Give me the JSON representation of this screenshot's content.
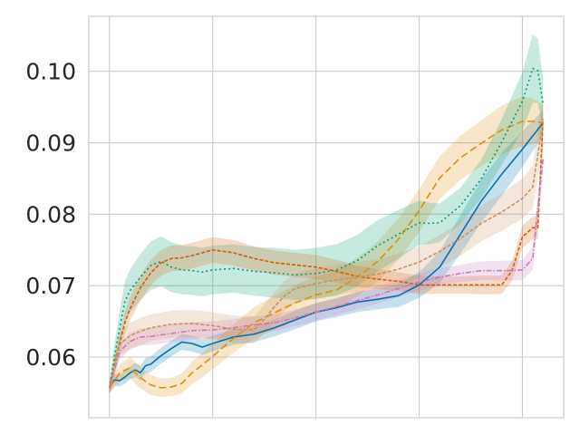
{
  "chart_data": {
    "type": "line",
    "title": "",
    "xlabel": "",
    "ylabel": "",
    "xlim": [
      -0.2,
      4.4
    ],
    "ylim": [
      0.0515,
      0.1077
    ],
    "x_ticks": [
      0,
      1,
      2,
      3,
      4
    ],
    "x_tick_labels": [
      "",
      "",
      "",
      "",
      ""
    ],
    "y_ticks": [
      0.06,
      0.07,
      0.08,
      0.09,
      0.1
    ],
    "y_tick_labels": [
      "0.06",
      "0.07",
      "0.08",
      "0.09",
      "0.10"
    ],
    "grid": true,
    "legend": "none",
    "series": [
      {
        "color": "#0173b2",
        "dash": "solid",
        "x": [
          0,
          0.05,
          0.1,
          0.15,
          0.2,
          0.25,
          0.3,
          0.35,
          0.4,
          0.5,
          0.6,
          0.7,
          0.8,
          0.9,
          1.0,
          1.2,
          1.4,
          1.6,
          1.8,
          2.0,
          2.2,
          2.4,
          2.6,
          2.8,
          3.0,
          3.2,
          3.4,
          3.6,
          3.8,
          4.0,
          4.2
        ],
        "y": [
          0.0557,
          0.0568,
          0.0567,
          0.0572,
          0.0578,
          0.0582,
          0.0578,
          0.0588,
          0.059,
          0.0602,
          0.0612,
          0.0621,
          0.0619,
          0.0614,
          0.0619,
          0.0628,
          0.0632,
          0.0641,
          0.0652,
          0.0663,
          0.0669,
          0.0677,
          0.0681,
          0.0686,
          0.0701,
          0.0726,
          0.0772,
          0.0818,
          0.0856,
          0.0891,
          0.0928
        ],
        "band": [
          0.0007,
          0.0008,
          0.0008,
          0.0009,
          0.0009,
          0.001,
          0.001,
          0.0011,
          0.0011,
          0.0011,
          0.0011,
          0.0011,
          0.0011,
          0.0011,
          0.0011,
          0.0011,
          0.0011,
          0.0012,
          0.0013,
          0.0013,
          0.0013,
          0.0014,
          0.0014,
          0.0016,
          0.0018,
          0.0022,
          0.0027,
          0.003,
          0.003,
          0.0025,
          0.0018
        ]
      },
      {
        "color": "#de8f05",
        "dash": "8,4",
        "x": [
          0,
          0.1,
          0.2,
          0.3,
          0.4,
          0.5,
          0.6,
          0.7,
          0.8,
          0.9,
          1.0,
          1.2,
          1.4,
          1.6,
          1.8,
          2.0,
          2.2,
          2.4,
          2.6,
          2.8,
          3.0,
          3.2,
          3.4,
          3.6,
          3.8,
          4.0,
          4.1,
          4.2
        ],
        "y": [
          0.0557,
          0.0578,
          0.0585,
          0.0571,
          0.0561,
          0.0557,
          0.0558,
          0.0563,
          0.0578,
          0.0589,
          0.0601,
          0.0626,
          0.0648,
          0.0662,
          0.0676,
          0.0687,
          0.0694,
          0.0712,
          0.0734,
          0.0765,
          0.0805,
          0.0851,
          0.0879,
          0.0899,
          0.0918,
          0.093,
          0.093,
          0.0928
        ],
        "band": [
          0.0008,
          0.0012,
          0.0015,
          0.0015,
          0.0014,
          0.0013,
          0.0013,
          0.0014,
          0.0016,
          0.0017,
          0.0018,
          0.002,
          0.0022,
          0.0024,
          0.0025,
          0.0026,
          0.0026,
          0.0027,
          0.0028,
          0.0029,
          0.003,
          0.003,
          0.0031,
          0.0032,
          0.0034,
          0.0035,
          0.0032,
          0.0025
        ]
      },
      {
        "color": "#029e73",
        "dash": "2,3",
        "x": [
          0,
          0.05,
          0.1,
          0.15,
          0.2,
          0.3,
          0.4,
          0.5,
          0.6,
          0.7,
          0.8,
          0.9,
          1.0,
          1.2,
          1.4,
          1.6,
          1.8,
          2.0,
          2.2,
          2.4,
          2.6,
          2.8,
          3.0,
          3.1,
          3.2,
          3.4,
          3.6,
          3.8,
          4.0,
          4.1,
          4.15,
          4.2
        ],
        "y": [
          0.0557,
          0.0602,
          0.0642,
          0.0678,
          0.0693,
          0.0712,
          0.0728,
          0.0734,
          0.0726,
          0.0722,
          0.0721,
          0.0719,
          0.0722,
          0.0724,
          0.072,
          0.0718,
          0.0715,
          0.0717,
          0.0722,
          0.0735,
          0.0756,
          0.0772,
          0.0788,
          0.0787,
          0.0788,
          0.0812,
          0.0849,
          0.0901,
          0.0958,
          0.1004,
          0.1001,
          0.0954
        ],
        "band": [
          0.0008,
          0.0018,
          0.0024,
          0.0028,
          0.003,
          0.0032,
          0.0034,
          0.0035,
          0.0035,
          0.0034,
          0.0034,
          0.0034,
          0.0034,
          0.0034,
          0.0034,
          0.0035,
          0.0035,
          0.0036,
          0.0036,
          0.0036,
          0.0036,
          0.0034,
          0.0031,
          0.0029,
          0.0027,
          0.0025,
          0.0027,
          0.0032,
          0.0041,
          0.0048,
          0.0045,
          0.0036
        ]
      },
      {
        "color": "#d55e00",
        "dash": "4,2",
        "x": [
          0,
          0.05,
          0.1,
          0.15,
          0.2,
          0.3,
          0.4,
          0.5,
          0.6,
          0.7,
          0.8,
          0.9,
          1.0,
          1.2,
          1.4,
          1.6,
          1.8,
          2.0,
          2.2,
          2.4,
          2.6,
          2.8,
          3.0,
          3.2,
          3.4,
          3.6,
          3.8,
          3.9,
          4.0,
          4.1,
          4.15,
          4.2
        ],
        "y": [
          0.0557,
          0.059,
          0.062,
          0.0648,
          0.0668,
          0.0697,
          0.0718,
          0.0732,
          0.0738,
          0.0739,
          0.0742,
          0.0746,
          0.075,
          0.0746,
          0.0738,
          0.0732,
          0.0729,
          0.0726,
          0.072,
          0.0713,
          0.0709,
          0.0706,
          0.0701,
          0.0701,
          0.0701,
          0.0701,
          0.0701,
          0.0721,
          0.0768,
          0.0781,
          0.0781,
          0.0933
        ],
        "band": [
          0.0008,
          0.0012,
          0.0014,
          0.0016,
          0.0017,
          0.0018,
          0.0018,
          0.0018,
          0.0018,
          0.0018,
          0.0018,
          0.0018,
          0.0018,
          0.0018,
          0.0017,
          0.0017,
          0.0017,
          0.0017,
          0.0016,
          0.0015,
          0.0014,
          0.0013,
          0.0013,
          0.0012,
          0.0012,
          0.0013,
          0.0013,
          0.0014,
          0.0016,
          0.0016,
          0.0016,
          0.002
        ]
      },
      {
        "color": "#cc78bc",
        "dash": "6,2,1.5,2",
        "x": [
          0,
          0.1,
          0.2,
          0.3,
          0.4,
          0.5,
          0.6,
          0.8,
          1.0,
          1.2,
          1.4,
          1.6,
          1.8,
          2.0,
          2.2,
          2.4,
          2.6,
          2.8,
          3.0,
          3.2,
          3.4,
          3.6,
          3.8,
          3.9,
          4.0,
          4.1,
          4.2
        ],
        "y": [
          0.0557,
          0.0608,
          0.0622,
          0.0628,
          0.0629,
          0.0631,
          0.0633,
          0.0637,
          0.0638,
          0.0641,
          0.0645,
          0.0648,
          0.0655,
          0.0663,
          0.0671,
          0.0679,
          0.0687,
          0.0696,
          0.0705,
          0.0712,
          0.0717,
          0.0721,
          0.0721,
          0.0721,
          0.0722,
          0.0738,
          0.0878
        ],
        "band": [
          0.0007,
          0.0011,
          0.0012,
          0.0012,
          0.0012,
          0.0012,
          0.0012,
          0.0012,
          0.0012,
          0.0012,
          0.0012,
          0.0012,
          0.0012,
          0.0012,
          0.0012,
          0.0012,
          0.0012,
          0.0012,
          0.0012,
          0.0012,
          0.0012,
          0.0013,
          0.0014,
          0.0014,
          0.0014,
          0.0016,
          0.0024
        ]
      },
      {
        "color": "#ca9161",
        "dash": "4,2",
        "x": [
          0,
          0.1,
          0.2,
          0.3,
          0.4,
          0.6,
          0.8,
          1.0,
          1.2,
          1.4,
          1.5,
          1.6,
          1.7,
          1.8,
          2.0,
          2.2,
          2.4,
          2.6,
          2.8,
          3.0,
          3.2,
          3.4,
          3.6,
          3.8,
          4.0,
          4.1,
          4.2
        ],
        "y": [
          0.0557,
          0.0618,
          0.063,
          0.0636,
          0.0641,
          0.0646,
          0.0647,
          0.0644,
          0.0639,
          0.0638,
          0.0653,
          0.0671,
          0.0686,
          0.0696,
          0.0703,
          0.0708,
          0.0712,
          0.0716,
          0.0723,
          0.0733,
          0.0748,
          0.0766,
          0.0787,
          0.0803,
          0.0822,
          0.0838,
          0.093
        ],
        "band": [
          0.0008,
          0.0016,
          0.0018,
          0.0019,
          0.0019,
          0.0019,
          0.0019,
          0.0019,
          0.0019,
          0.0019,
          0.002,
          0.0021,
          0.0021,
          0.0021,
          0.0021,
          0.0021,
          0.0021,
          0.0021,
          0.0022,
          0.0022,
          0.0023,
          0.0024,
          0.0025,
          0.0026,
          0.0028,
          0.003,
          0.0035
        ]
      }
    ]
  }
}
